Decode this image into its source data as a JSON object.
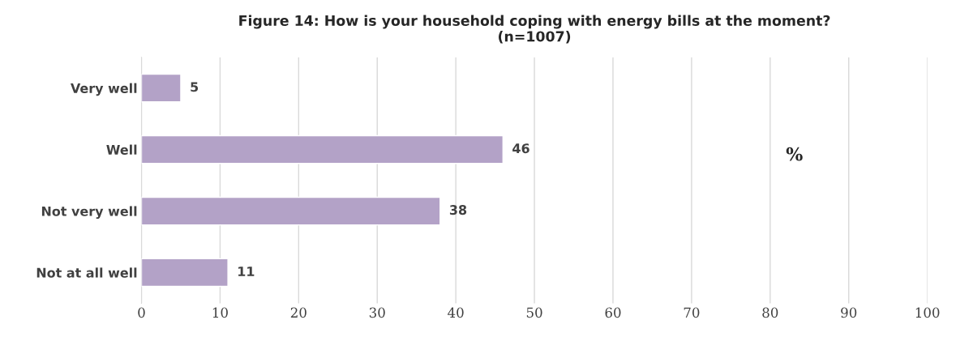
{
  "chart_data": {
    "type": "bar",
    "orientation": "horizontal",
    "title": "Figure 14: How is your household coping with energy bills at the moment?\n(n=1007)",
    "categories": [
      "Very well",
      "Well",
      "Not very well",
      "Not at all well"
    ],
    "values": [
      5,
      46,
      38,
      11
    ],
    "color": "#b3a2c7",
    "xlim": [
      0,
      100
    ],
    "xticks": [
      0,
      10,
      20,
      30,
      40,
      50,
      60,
      70,
      80,
      90,
      100
    ],
    "grid": "x",
    "data_labels": true,
    "annotations": [
      "%"
    ]
  }
}
